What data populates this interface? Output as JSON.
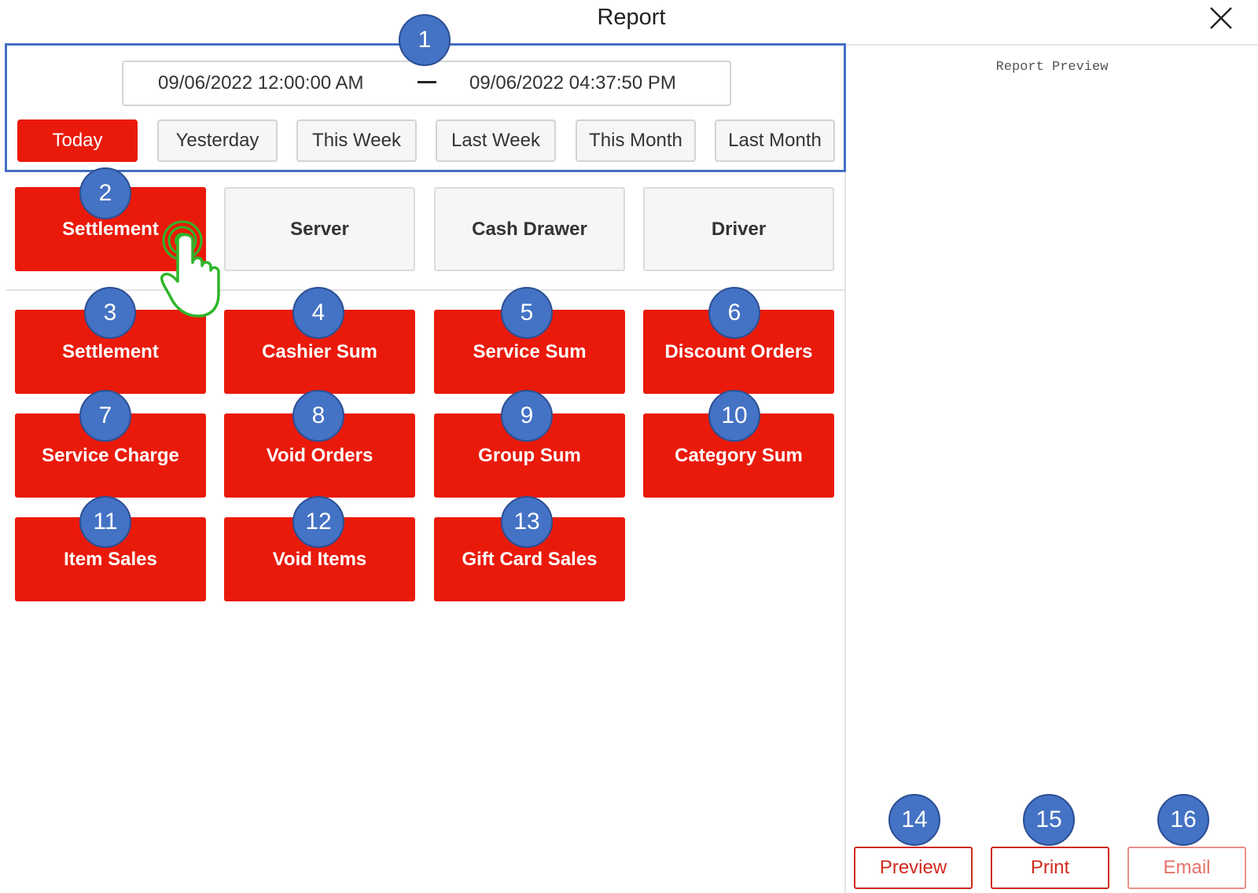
{
  "header": {
    "title": "Report"
  },
  "date_range": {
    "start": "09/06/2022 12:00:00 AM",
    "end": "09/06/2022 04:37:50 PM"
  },
  "periods": [
    "Today",
    "Yesterday",
    "This Week",
    "Last Week",
    "This Month",
    "Last Month"
  ],
  "active_period": "Today",
  "tabs": [
    "Settlement",
    "Server",
    "Cash Drawer",
    "Driver"
  ],
  "active_tab": "Settlement",
  "reports": [
    "Settlement",
    "Cashier Sum",
    "Service Sum",
    "Discount Orders",
    "Service Charge",
    "Void Orders",
    "Group Sum",
    "Category Sum",
    "Item Sales",
    "Void Items",
    "Gift Card Sales"
  ],
  "preview": {
    "label": "Report Preview"
  },
  "actions": {
    "preview": "Preview",
    "print": "Print",
    "email": "Email"
  },
  "badges": [
    "1",
    "2",
    "3",
    "4",
    "5",
    "6",
    "7",
    "8",
    "9",
    "10",
    "11",
    "12",
    "13",
    "14",
    "15",
    "16"
  ],
  "icons": {
    "close": "close-icon",
    "pointer": "pointer-hand-icon"
  },
  "colors": {
    "accent": "#ea1a0b",
    "badge": "#4472c4",
    "highlight_border": "#4470c4",
    "pointer": "#2fb52a"
  }
}
